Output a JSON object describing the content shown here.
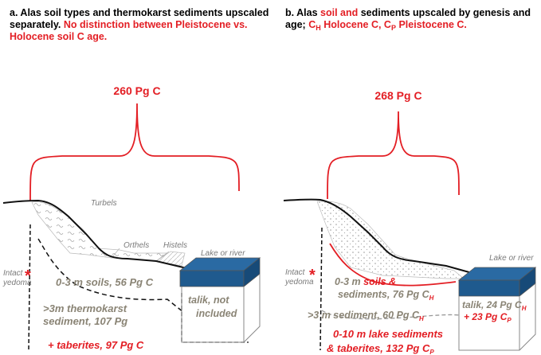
{
  "panel_a": {
    "title_black": "a. Alas soil types and thermokarst sediments upscaled separately.",
    "title_red": "No distinction between Pleistocene vs. Holocene soil C age.",
    "total": "260 Pg C",
    "turbels": "Turbels",
    "orthels": "Orthels",
    "histels": "Histels",
    "lake": "Lake or river",
    "yedoma_1": "Intact",
    "yedoma_2": "yedoma",
    "soils": "0-3 m soils, 56 Pg C",
    "thermo_1": ">3m thermokarst",
    "thermo_2": "sediment, 107 Pg",
    "taberites": "+ taberites, 97 Pg C",
    "talik_1": "talik, not",
    "talik_2": "included"
  },
  "panel_b": {
    "title_black_1": "b. Alas",
    "title_red_1": "soil and",
    "title_black_2": "sediments upscaled by genesis and age;",
    "title_red_2a": "C",
    "title_red_2a_sub": "H",
    "title_red_2b": "Holocene C, C",
    "title_red_2b_sub": "P",
    "title_red_2c": "Pleistocene C.",
    "total": "268 Pg C",
    "lake": "Lake or river",
    "yedoma_1": "Intact",
    "yedoma_2": "yedoma",
    "soils_a": "0-3 m",
    "soils_b": "soils &",
    "soils_c": "sediments, 76 Pg C",
    "soils_sub": "H",
    "sed3": ">3 m sediment, 60 Pg C",
    "sed3_sub": "H",
    "talik_a": "talik, 24 Pg C",
    "talik_a_sub": "H",
    "talik_b": "+ 23 Pg C",
    "talik_b_sub": "P",
    "lake_sed_1": "0-10 m lake sediments",
    "lake_sed_2": "& taberites, 132 Pg C",
    "lake_sed_sub": "P"
  },
  "colors": {
    "accent_red": "#e31e24",
    "water_blue": "#1f5a8e",
    "label_gray": "#8a8475"
  }
}
